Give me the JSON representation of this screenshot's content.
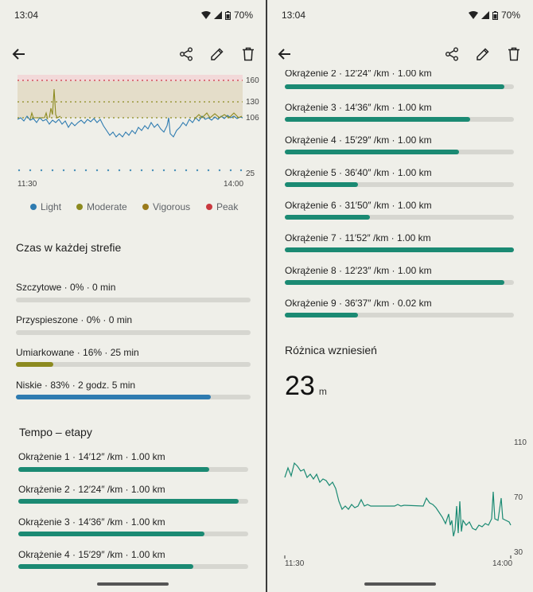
{
  "status": {
    "time": "13:04",
    "battery": "70%"
  },
  "hr_chart": {
    "y_labels": [
      "160",
      "130",
      "106",
      "25"
    ],
    "x_labels": [
      "11:30",
      "14:00"
    ]
  },
  "legend": [
    {
      "label": "Light",
      "color": "#2e7bb0"
    },
    {
      "label": "Moderate",
      "color": "#8c8a1f"
    },
    {
      "label": "Vigorous",
      "color": "#9a7a1a"
    },
    {
      "label": "Peak",
      "color": "#c9393f"
    }
  ],
  "zones": {
    "title": "Czas w każdej strefie",
    "items": [
      {
        "label": "Szczytowe · 0% · 0 min",
        "percent": 0,
        "color": "#c9393f"
      },
      {
        "label": "Przyspieszone · 0% · 0 min",
        "percent": 0,
        "color": "#9a7a1a"
      },
      {
        "label": "Umiarkowane · 16% · 25 min",
        "percent": 16,
        "color": "#8c8a1f"
      },
      {
        "label": "Niskie · 83% · 2 godz. 5 min",
        "percent": 83,
        "color": "#2e7bb0"
      }
    ]
  },
  "tempo": {
    "title": "Tempo – etapy",
    "laps": [
      {
        "label": "Okrążenie 1 · 14′12″ /km · 1.00 km",
        "fraction": 0.83
      },
      {
        "label": "Okrążenie 2 · 12′24″ /km · 1.00 km",
        "fraction": 0.96
      },
      {
        "label": "Okrążenie 3 · 14′36″ /km · 1.00 km",
        "fraction": 0.81
      },
      {
        "label": "Okrążenie 4 · 15′29″ /km · 1.00 km",
        "fraction": 0.76
      },
      {
        "label": "Okrążenie 5 · 36′40″ /km · 1.00 km",
        "fraction": 0.32
      },
      {
        "label": "Okrążenie 6 · 31′50″ /km · 1.00 km",
        "fraction": 0.37
      },
      {
        "label": "Okrążenie 7 · 11′52″ /km · 1.00 km",
        "fraction": 1.0
      },
      {
        "label": "Okrążenie 8 · 12′23″ /km · 1.00 km",
        "fraction": 0.96
      },
      {
        "label": "Okrążenie 9 · 36′37″ /km · 0.02 km",
        "fraction": 0.32
      }
    ],
    "color": "#1b8a73"
  },
  "elevation": {
    "title": "Różnica wzniesień",
    "value": "23",
    "unit": "m",
    "y_labels": [
      "110",
      "70",
      "30"
    ],
    "x_labels": [
      "11:30",
      "14:00"
    ]
  }
}
